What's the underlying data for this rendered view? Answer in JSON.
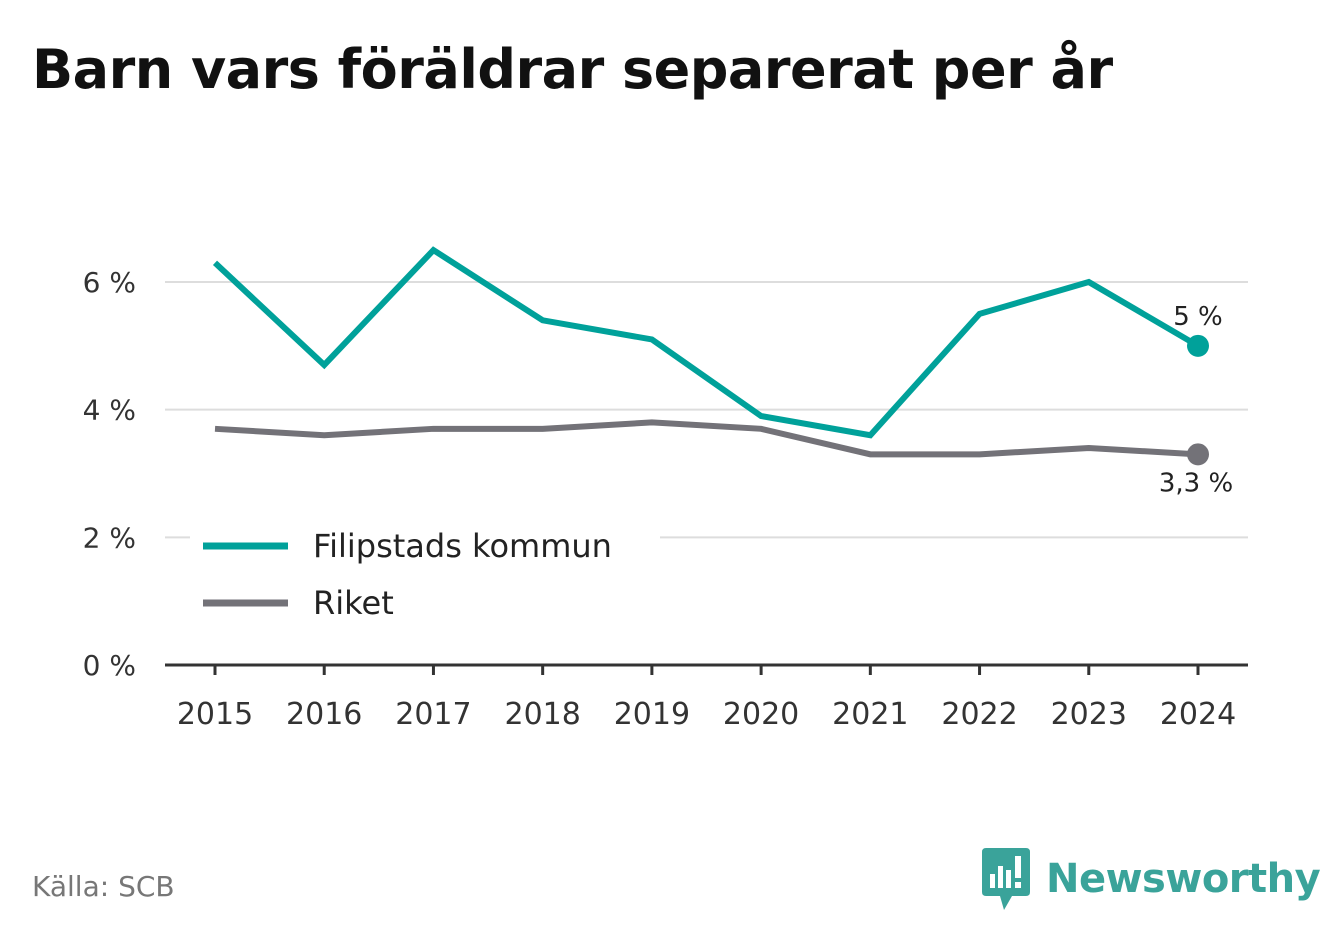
{
  "title": "Barn vars föräldrar separerat per år",
  "source": "Källa: SCB",
  "brand": {
    "name": "Newsworthy",
    "icon": "newsworthy-logo-icon",
    "color": "#3aa39a"
  },
  "chart_data": {
    "type": "line",
    "title": "Barn vars föräldrar separerat per år",
    "categories": [
      "2015",
      "2016",
      "2017",
      "2018",
      "2019",
      "2020",
      "2021",
      "2022",
      "2023",
      "2024"
    ],
    "series": [
      {
        "name": "Filipstads kommun",
        "color": "#00a19a",
        "values": [
          6.3,
          4.7,
          6.5,
          5.4,
          5.1,
          3.9,
          3.6,
          5.5,
          6.0,
          5.0
        ],
        "end_label": "5 %"
      },
      {
        "name": "Riket",
        "color": "#737278",
        "values": [
          3.7,
          3.6,
          3.7,
          3.7,
          3.8,
          3.7,
          3.3,
          3.3,
          3.4,
          3.3
        ],
        "end_label": "3,3 %"
      }
    ],
    "y_ticks": [
      0,
      2,
      4,
      6
    ],
    "y_tick_labels": [
      "0 %",
      "2 %",
      "4 %",
      "6 %"
    ],
    "ylim": [
      0,
      6.9
    ],
    "grid": true,
    "legend_position": "bottom-left"
  }
}
